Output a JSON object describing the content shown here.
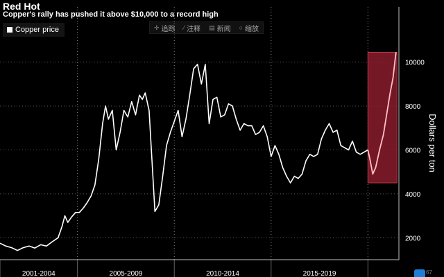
{
  "header": {
    "title": "Red Hot",
    "subtitle": "Copper's rally has pushed it above $10,000 to a record high"
  },
  "toolbar": {
    "items": [
      {
        "icon": "crosshair-icon",
        "glyph": "✛",
        "label": "追踪"
      },
      {
        "icon": "pencil-icon",
        "glyph": "⁄",
        "label": "注释"
      },
      {
        "icon": "news-icon",
        "glyph": "▤",
        "label": "新闻"
      },
      {
        "icon": "zoom-icon",
        "glyph": "○",
        "label": "缩放"
      }
    ]
  },
  "badge": {
    "text": "67"
  },
  "colors": {
    "background": "#000000",
    "line": "#ffffff",
    "highlight_fill": "#8a1c2c",
    "highlight_border": "#c0394f",
    "highlight_line": "#ffc0c8",
    "grid": "#5a5a5a"
  },
  "chart_data": {
    "type": "line",
    "title": "Red Hot",
    "subtitle": "Copper's rally has pushed it above $10,000 to a record high",
    "ylabel": "Dollars per ton",
    "xlabel": "",
    "ylim": [
      1000,
      11000
    ],
    "yticks": [
      2000,
      4000,
      6000,
      8000,
      10000
    ],
    "xlim": [
      2001.0,
      2021.6
    ],
    "x_sections": [
      {
        "label": "2001-2004",
        "from": 2001,
        "to": 2005
      },
      {
        "label": "2005-2009",
        "from": 2005,
        "to": 2010
      },
      {
        "label": "2010-2014",
        "from": 2010,
        "to": 2015
      },
      {
        "label": "2015-2019",
        "from": 2015,
        "to": 2020
      },
      {
        "label": "",
        "from": 2020,
        "to": 2021.6
      }
    ],
    "grid": true,
    "legend": {
      "position": "top-left",
      "entries": [
        "Copper price"
      ]
    },
    "highlight_region": {
      "x": [
        2020.0,
        2021.5
      ],
      "y": [
        4500,
        10450
      ]
    },
    "series": [
      {
        "name": "Copper price",
        "points": [
          [
            2001.0,
            1750
          ],
          [
            2001.3,
            1620
          ],
          [
            2001.6,
            1550
          ],
          [
            2001.9,
            1420
          ],
          [
            2002.2,
            1550
          ],
          [
            2002.5,
            1620
          ],
          [
            2002.8,
            1530
          ],
          [
            2003.1,
            1680
          ],
          [
            2003.4,
            1620
          ],
          [
            2003.7,
            1820
          ],
          [
            2004.0,
            2000
          ],
          [
            2004.2,
            2500
          ],
          [
            2004.35,
            3000
          ],
          [
            2004.5,
            2700
          ],
          [
            2004.7,
            2950
          ],
          [
            2004.9,
            3150
          ],
          [
            2005.1,
            3150
          ],
          [
            2005.3,
            3350
          ],
          [
            2005.5,
            3600
          ],
          [
            2005.7,
            3900
          ],
          [
            2005.9,
            4400
          ],
          [
            2006.1,
            5600
          ],
          [
            2006.3,
            7200
          ],
          [
            2006.45,
            8000
          ],
          [
            2006.6,
            7400
          ],
          [
            2006.8,
            7800
          ],
          [
            2007.0,
            6000
          ],
          [
            2007.2,
            6800
          ],
          [
            2007.4,
            7800
          ],
          [
            2007.6,
            7500
          ],
          [
            2007.8,
            8200
          ],
          [
            2008.0,
            7600
          ],
          [
            2008.2,
            8500
          ],
          [
            2008.35,
            8300
          ],
          [
            2008.5,
            8600
          ],
          [
            2008.7,
            7800
          ],
          [
            2008.85,
            5500
          ],
          [
            2009.0,
            3200
          ],
          [
            2009.2,
            3500
          ],
          [
            2009.4,
            4800
          ],
          [
            2009.6,
            6200
          ],
          [
            2009.8,
            6800
          ],
          [
            2010.0,
            7300
          ],
          [
            2010.2,
            7800
          ],
          [
            2010.4,
            6600
          ],
          [
            2010.6,
            7400
          ],
          [
            2010.8,
            8500
          ],
          [
            2011.0,
            9700
          ],
          [
            2011.2,
            9900
          ],
          [
            2011.4,
            9000
          ],
          [
            2011.6,
            9900
          ],
          [
            2011.8,
            7200
          ],
          [
            2012.0,
            8300
          ],
          [
            2012.2,
            8400
          ],
          [
            2012.4,
            7500
          ],
          [
            2012.6,
            7600
          ],
          [
            2012.8,
            8100
          ],
          [
            2013.0,
            8000
          ],
          [
            2013.2,
            7400
          ],
          [
            2013.4,
            6900
          ],
          [
            2013.6,
            7200
          ],
          [
            2013.8,
            7100
          ],
          [
            2014.0,
            7100
          ],
          [
            2014.2,
            6700
          ],
          [
            2014.4,
            6800
          ],
          [
            2014.6,
            7100
          ],
          [
            2014.8,
            6600
          ],
          [
            2015.0,
            5700
          ],
          [
            2015.2,
            6200
          ],
          [
            2015.4,
            5800
          ],
          [
            2015.6,
            5200
          ],
          [
            2015.8,
            4800
          ],
          [
            2016.0,
            4500
          ],
          [
            2016.2,
            4800
          ],
          [
            2016.4,
            4700
          ],
          [
            2016.6,
            4900
          ],
          [
            2016.8,
            5500
          ],
          [
            2017.0,
            5800
          ],
          [
            2017.2,
            5700
          ],
          [
            2017.4,
            5800
          ],
          [
            2017.6,
            6500
          ],
          [
            2017.8,
            6900
          ],
          [
            2018.0,
            7200
          ],
          [
            2018.2,
            6800
          ],
          [
            2018.4,
            6900
          ],
          [
            2018.6,
            6200
          ],
          [
            2018.8,
            6100
          ],
          [
            2019.0,
            6000
          ],
          [
            2019.2,
            6400
          ],
          [
            2019.4,
            5900
          ],
          [
            2019.6,
            5800
          ],
          [
            2019.8,
            5900
          ],
          [
            2020.0,
            6000
          ]
        ],
        "highlight_points": [
          [
            2020.0,
            6000
          ],
          [
            2020.1,
            5600
          ],
          [
            2020.25,
            4900
          ],
          [
            2020.4,
            5200
          ],
          [
            2020.6,
            6000
          ],
          [
            2020.8,
            6700
          ],
          [
            2021.0,
            7800
          ],
          [
            2021.15,
            8600
          ],
          [
            2021.3,
            9300
          ],
          [
            2021.45,
            10450
          ]
        ]
      }
    ]
  }
}
